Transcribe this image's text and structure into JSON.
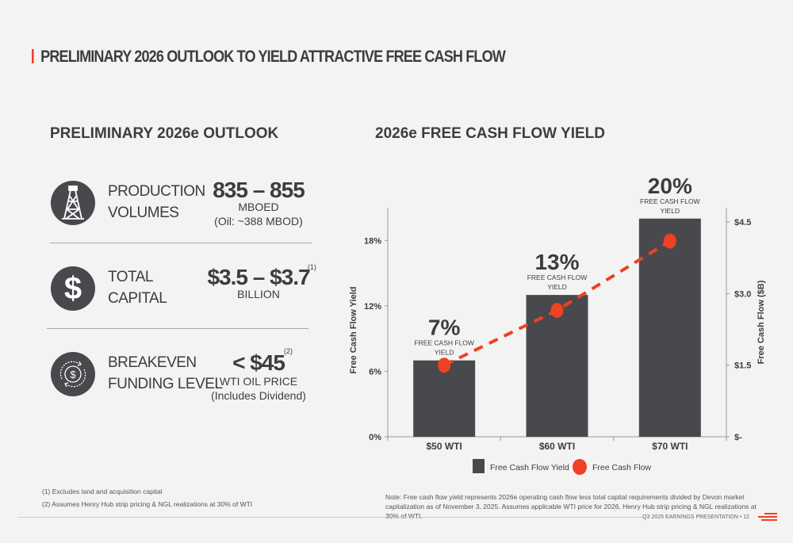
{
  "title": "PRELIMINARY 2026 OUTLOOK TO YIELD ATTRACTIVE FREE CASH FLOW",
  "left": {
    "heading": "PRELIMINARY 2026e OUTLOOK",
    "items": [
      {
        "icon": "oil-rig-icon",
        "label1": "PRODUCTION",
        "label2": "VOLUMES",
        "value": "835 – 855",
        "sup": "",
        "unit": "MBOED",
        "detail": "(Oil: ~388 MBOD)"
      },
      {
        "icon": "dollar-icon",
        "label1": "TOTAL",
        "label2": "CAPITAL",
        "value": "$3.5 – $3.7",
        "sup": "(1)",
        "unit": "BILLION",
        "detail": ""
      },
      {
        "icon": "dollar-cycle-icon",
        "label1": "BREAKEVEN",
        "label2": "FUNDING LEVEL",
        "value": "< $45",
        "sup": "(2)",
        "unit": "WTI OIL PRICE",
        "detail": "(Includes Dividend)"
      }
    ]
  },
  "right": {
    "heading": "2026e FREE CASH FLOW YIELD"
  },
  "chart_data": {
    "type": "bar",
    "categories": [
      "$50 WTI",
      "$60 WTI",
      "$70 WTI"
    ],
    "series": [
      {
        "name": "Free Cash Flow Yield",
        "type": "bar",
        "axis": "left",
        "values": [
          7,
          13,
          20
        ],
        "data_labels": [
          "7%",
          "13%",
          "20%"
        ],
        "label_caption": "FREE CASH FLOW YIELD",
        "color": "#48494d"
      },
      {
        "name": "Free Cash Flow",
        "type": "line-dashed-markers",
        "axis": "right",
        "values": [
          1.5,
          2.65,
          4.1
        ],
        "color": "#ef4123"
      }
    ],
    "ylabel": "Free Cash Flow Yield",
    "y2label": "Free Cash Flow ($B)",
    "ylim": [
      0,
      21
    ],
    "yticks": [
      "0%",
      "6%",
      "12%",
      "18%"
    ],
    "ytick_values": [
      0,
      6,
      12,
      18
    ],
    "y2lim": [
      0,
      4.8
    ],
    "y2ticks": [
      "$-",
      "$1.5",
      "$3.0",
      "$4.5"
    ],
    "y2tick_values": [
      0,
      1.5,
      3,
      4.5
    ],
    "legend": "bottom",
    "grid": false
  },
  "footnotes": [
    "(1) Excludes land and acquisition capital",
    "(2) Assumes Henry Hub strip pricing & NGL realizations at 30% of WTI"
  ],
  "note": "Note: Free cash flow yield represents 2026e operating cash flow less total capital requirements divided by Devon market capitalization as of November 3, 2025. Assumes applicable WTI price for 2026, Henry Hub strip pricing & NGL realizations at 30% of WTI.",
  "footer": "Q3 2025 EARNINGS PRESENTATION  •  12",
  "colors": {
    "accent": "#ef4123",
    "dark": "#48494d"
  }
}
